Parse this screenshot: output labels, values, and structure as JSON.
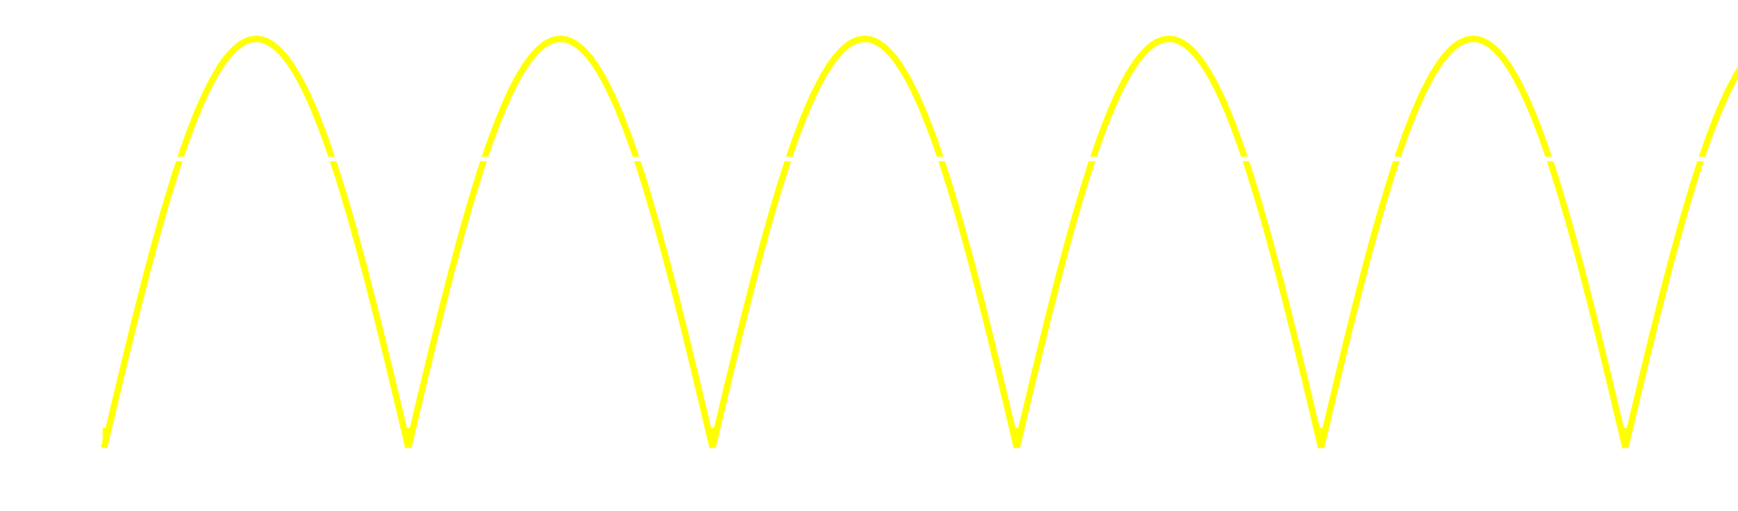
{
  "chart_data": {
    "type": "line",
    "title": "",
    "xlabel": "",
    "ylabel": "",
    "grid": false,
    "legend": "none",
    "xlim": [
      0,
      5.4
    ],
    "ylim": [
      0,
      1
    ],
    "gap_level": 0.705,
    "series": [
      {
        "color": "#ffff00",
        "kind": "full-wave rectified sine",
        "x": [
          0,
          0.1,
          0.2,
          0.3,
          0.4,
          0.5,
          0.6,
          0.7,
          0.8,
          0.9,
          1.0,
          1.1,
          1.2,
          1.3,
          1.4,
          1.5,
          1.6,
          1.7,
          1.8,
          1.9,
          2.0,
          2.1,
          2.2,
          2.3,
          2.4,
          2.5,
          2.6,
          2.7,
          2.8,
          2.9,
          3.0,
          3.1,
          3.2,
          3.3,
          3.4,
          3.5,
          3.6,
          3.7,
          3.8,
          3.9,
          4.0,
          4.1,
          4.2,
          4.3,
          4.4,
          4.5,
          4.6,
          4.7,
          4.8,
          4.9,
          5.0,
          5.1,
          5.2,
          5.3,
          5.4
        ],
        "y": [
          0,
          0.309,
          0.588,
          0.809,
          0.951,
          1.0,
          0.951,
          0.809,
          0.588,
          0.309,
          0,
          0.309,
          0.588,
          0.809,
          0.951,
          1.0,
          0.951,
          0.809,
          0.588,
          0.309,
          0,
          0.309,
          0.588,
          0.809,
          0.951,
          1.0,
          0.951,
          0.809,
          0.588,
          0.309,
          0,
          0.309,
          0.588,
          0.809,
          0.951,
          1.0,
          0.951,
          0.809,
          0.588,
          0.309,
          0,
          0.309,
          0.588,
          0.809,
          0.951,
          1.0,
          0.951,
          0.809,
          0.588,
          0.309,
          0,
          0.309,
          0.588,
          0.809,
          0.951
        ]
      }
    ]
  }
}
